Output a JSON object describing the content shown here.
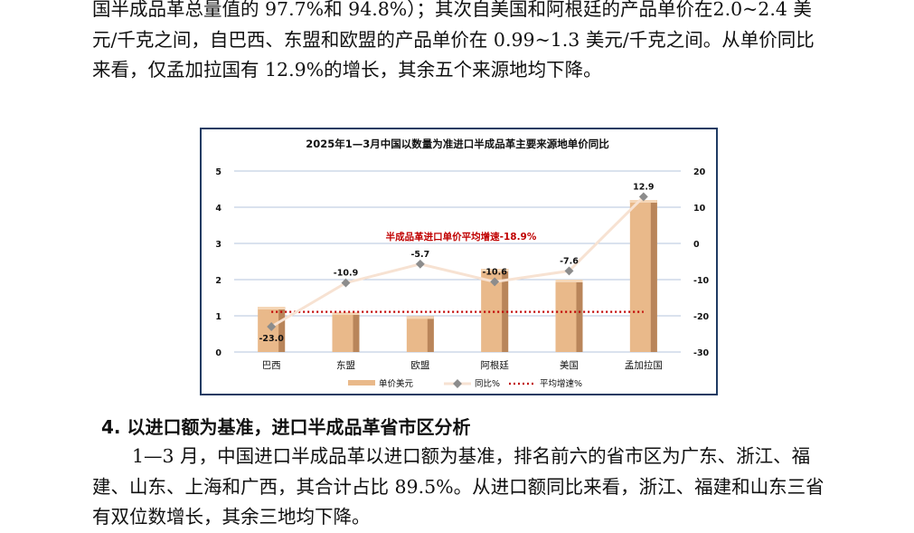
{
  "doc": {
    "para1": "国半成品革总量值的 97.7%和 94.8%）；其次自美国和阿根廷的产品单价在2.0~2.4 美元/千克之间，自巴西、东盟和欧盟的产品单价在 0.99~1.3 美元/千克之间。从单价同比来看，仅孟加拉国有 12.9%的增长，其余五个来源地均下降。",
    "heading": "4. 以进口额为基准，进口半成品革省市区分析",
    "para2": "1—3 月，中国进口半成品革以进口额为基准，排名前六的省市区为广东、浙江、福建、山东、上海和广西，其合计占比 89.5%。从进口额同比来看，浙江、福建和山东三省有双位数增长，其余三地均下降。"
  },
  "chart_data": {
    "type": "bar",
    "title": "2025年1—3月中国以数量为准进口半成品革主要来源地单价同比",
    "categories": [
      "巴西",
      "东盟",
      "欧盟",
      "阿根廷",
      "美国",
      "孟加拉国"
    ],
    "series": [
      {
        "name": "单价美元",
        "type": "bar",
        "axis": "left",
        "values": [
          1.25,
          1.1,
          0.99,
          2.3,
          2.0,
          4.2
        ]
      },
      {
        "name": "同比%",
        "type": "line",
        "axis": "right",
        "values": [
          -23.0,
          -10.9,
          -5.7,
          -10.6,
          -7.6,
          12.9
        ]
      },
      {
        "name": "平均增速%",
        "type": "line",
        "style": "dotted",
        "axis": "right",
        "values": [
          -18.9,
          -18.9,
          -18.9,
          -18.9,
          -18.9,
          -18.9
        ]
      }
    ],
    "data_labels": [
      "-23.0",
      "-10.9",
      "-5.7",
      "-10.6",
      "-7.6",
      "12.9"
    ],
    "annotation": "半成品革进口单价平均增速-18.9%",
    "y_left": {
      "range": [
        0,
        5
      ],
      "ticks": [
        "0",
        "1",
        "2",
        "3",
        "4",
        "5"
      ]
    },
    "y_right": {
      "range": [
        -30,
        20
      ],
      "ticks": [
        "-30",
        "-20",
        "-10",
        "0",
        "10",
        "20"
      ]
    },
    "grid": true,
    "legend_position": "bottom",
    "colors": {
      "bar": "#e9b98a",
      "bar_dark": "#b9855a",
      "line": "#f7e2d2",
      "avg": "#c00000",
      "grid": "#9db3d3"
    }
  }
}
